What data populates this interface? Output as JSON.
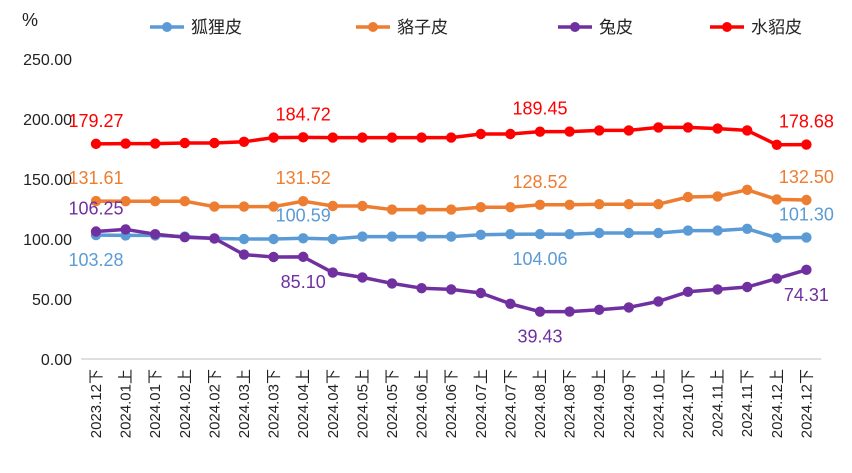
{
  "chart_data": {
    "type": "line",
    "unit_label": "%",
    "ylim": [
      0,
      250
    ],
    "y_ticks": [
      "0.00",
      "50.00",
      "100.00",
      "150.00",
      "200.00",
      "250.00"
    ],
    "grid": false,
    "legend_position": "top",
    "categories": [
      "2023.12下",
      "2024.01上",
      "2024.01下",
      "2024.02上",
      "2024.02下",
      "2024.03上",
      "2024.03下",
      "2024.04上",
      "2024.04下",
      "2024.05上",
      "2024.05下",
      "2024.06上",
      "2024.06下",
      "2024.07上",
      "2024.07下",
      "2024.08上",
      "2024.08下",
      "2024.09上",
      "2024.09下",
      "2024.10上",
      "2024.10下",
      "2024.11上",
      "2024.11下",
      "2024.12上",
      "2024.12下"
    ],
    "series": [
      {
        "name": "狐狸皮",
        "color": "#5B9BD5",
        "values": [
          103.28,
          103,
          103,
          102,
          100.5,
          100,
          100,
          100.59,
          100,
          102,
          102,
          102,
          102,
          103.5,
          104,
          104.06,
          104,
          105,
          105,
          105,
          107,
          107,
          108.5,
          101,
          101.3
        ],
        "labels": [
          {
            "index": 0,
            "text": "103.28",
            "pos": "below"
          },
          {
            "index": 7,
            "text": "100.59",
            "pos": "above"
          },
          {
            "index": 15,
            "text": "104.06",
            "pos": "below"
          },
          {
            "index": 24,
            "text": "101.30",
            "pos": "above"
          }
        ]
      },
      {
        "name": "貉子皮",
        "color": "#ED7D31",
        "values": [
          131.61,
          131.5,
          131.5,
          131.5,
          127,
          127,
          127,
          131.52,
          127.5,
          127.5,
          124.5,
          124.5,
          124.5,
          126.5,
          126.5,
          128.52,
          128.5,
          129,
          129,
          129,
          135,
          135.5,
          141,
          133,
          132.5
        ],
        "labels": [
          {
            "index": 0,
            "text": "131.61",
            "pos": "above"
          },
          {
            "index": 7,
            "text": "131.52",
            "pos": "above"
          },
          {
            "index": 15,
            "text": "128.52",
            "pos": "above"
          },
          {
            "index": 24,
            "text": "132.50",
            "pos": "above"
          }
        ]
      },
      {
        "name": "兔皮",
        "color": "#7030A0",
        "values": [
          106.25,
          108,
          104,
          101.5,
          100.5,
          87,
          85,
          85.1,
          72,
          68,
          63,
          59,
          58,
          55,
          46,
          39.43,
          39.5,
          41,
          43,
          48,
          56,
          58,
          60,
          67,
          74.31
        ],
        "labels": [
          {
            "index": 0,
            "text": "106.25",
            "pos": "above"
          },
          {
            "index": 7,
            "text": "85.10",
            "pos": "below"
          },
          {
            "index": 15,
            "text": "39.43",
            "pos": "below"
          },
          {
            "index": 24,
            "text": "74.31",
            "pos": "below"
          }
        ]
      },
      {
        "name": "水貂皮",
        "color": "#FF0000",
        "values": [
          179.27,
          179.5,
          179.5,
          180,
          180,
          181,
          184.5,
          184.72,
          184.5,
          184.5,
          184.5,
          184.5,
          184.5,
          187.5,
          187.5,
          189.45,
          189.5,
          190.5,
          190.5,
          193,
          193,
          192,
          190.5,
          178.5,
          178.68
        ],
        "labels": [
          {
            "index": 0,
            "text": "179.27",
            "pos": "above"
          },
          {
            "index": 7,
            "text": "184.72",
            "pos": "above"
          },
          {
            "index": 15,
            "text": "189.45",
            "pos": "above"
          },
          {
            "index": 24,
            "text": "178.68",
            "pos": "above"
          }
        ]
      }
    ]
  }
}
